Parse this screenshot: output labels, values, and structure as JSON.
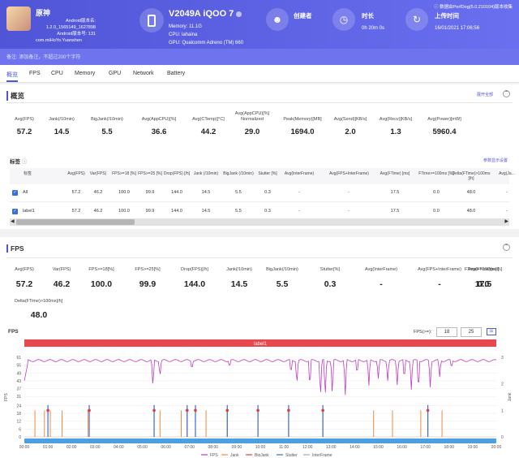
{
  "header": {
    "app_name": "原神",
    "app_version_label": "Android版本名:",
    "app_version": "1.2.0_1565149_1627898",
    "app_build_label": "Android版本号: 131",
    "package": "com.miHoYo.Yuanshen",
    "device_name": "V2049A iQOO 7",
    "memory": "Memory: 11.1G",
    "cpu": "CPU: lahaina",
    "gpu": "GPU: Qualcomm Adreno (TM) 660",
    "creator_label": "创建者",
    "duration_label": "时长",
    "duration_value": "0h 20m 0s",
    "upload_label": "上传时间",
    "upload_value": "16/01/2021 17:06:56",
    "source": "数据由PerfDog(5.0.210104)版本收集",
    "remark": "备注: 添加备注，不超过200个字符"
  },
  "tabs": [
    "概览",
    "FPS",
    "CPU",
    "Memory",
    "GPU",
    "Network",
    "Battery"
  ],
  "overview": {
    "title": "概览",
    "expand_label": "展开全部",
    "metrics": [
      {
        "label": "Avg(FPS)",
        "value": "57.2"
      },
      {
        "label": "Jank(/10min)",
        "value": "14.5"
      },
      {
        "label": "BigJank(/10min)",
        "value": "5.5"
      },
      {
        "label": "Avg(AppCPU)[%]",
        "value": "36.6"
      },
      {
        "label": "Avg(CTemp)[°C]",
        "value": "44.2"
      },
      {
        "label": "Avg(AppCPU)[%] Normalized",
        "value": "29.0"
      },
      {
        "label": "Peak(Memory)[MB]",
        "value": "1694.0"
      },
      {
        "label": "Avg(Send)[KB/s]",
        "value": "2.0"
      },
      {
        "label": "Avg(Recv)[KB/s]",
        "value": "1.3"
      },
      {
        "label": "Avg(Power)[mW]",
        "value": "5960.4"
      }
    ],
    "table_title": "标签",
    "table_link": "参数显示设置",
    "columns": [
      "标签",
      "Avg(FPS)",
      "Var(FPS)",
      "FPS>=18 [%]",
      "FPS>=25 [%]",
      "Drop(FPS) [/h]",
      "Jank (/10min)",
      "BigJank (/10min)",
      "Stutter [%]",
      "Avg(InterFrame)",
      "Avg(FPS+InterFrame)",
      "Avg(FTime) [ms]",
      "FTime>=100ms [%]",
      "Delta(FTime)>100ms [/h]",
      "Avg(Ja..."
    ],
    "rows": [
      [
        "All",
        "57.2",
        "46.2",
        "100.0",
        "99.9",
        "144.0",
        "14.5",
        "5.5",
        "0.3",
        "-",
        "-",
        "17.5",
        "0.0",
        "48.0",
        "-"
      ],
      [
        "label1",
        "57.2",
        "46.2",
        "100.0",
        "99.9",
        "144.0",
        "14.5",
        "5.5",
        "0.3",
        "-",
        "-",
        "17.5",
        "0.0",
        "48.0",
        "-"
      ]
    ]
  },
  "fps_section": {
    "title": "FPS",
    "metrics": [
      {
        "label": "Avg(FPS)",
        "value": "57.2"
      },
      {
        "label": "Var(FPS)",
        "value": "46.2"
      },
      {
        "label": "FPS>=18[%]",
        "value": "100.0"
      },
      {
        "label": "FPS>=25[%]",
        "value": "99.9"
      },
      {
        "label": "Drop(FPS)[/h]",
        "value": "144.0"
      },
      {
        "label": "Jank(/10min)",
        "value": "14.5"
      },
      {
        "label": "BigJank(/10min)",
        "value": "5.5"
      },
      {
        "label": "Stutter[%]",
        "value": "0.3"
      },
      {
        "label": "Avg(InterFrame)",
        "value": "-"
      },
      {
        "label": "Avg(FPS+InterFrame)",
        "value": "-"
      },
      {
        "label": "Avg(FTime)[ms]",
        "value": "17.5"
      },
      {
        "label": "FTime>=100ms[%]",
        "value": "0.0"
      },
      {
        "label": "Delta(FTime)>100ms[/h]",
        "value": "48.0"
      }
    ],
    "fps_filter_label": "FPS(>=):",
    "fps_filter_a": "18",
    "fps_filter_b": "25"
  },
  "chart_data": {
    "type": "line",
    "title": "FPS",
    "label_band": "label1",
    "ylabel": "FPS",
    "y2label": "Jank",
    "y_ticks": [
      "61",
      "55",
      "49",
      "43",
      "37",
      "31",
      "24",
      "18",
      "12",
      "6",
      "0"
    ],
    "y2_ticks": [
      "3",
      "2",
      "1",
      "0"
    ],
    "x_ticks": [
      "00:00",
      "01:00",
      "02:00",
      "03:00",
      "04:00",
      "05:00",
      "06:00",
      "07:00",
      "08:00",
      "09:00",
      "10:00",
      "11:00",
      "12:00",
      "13:00",
      "14:00",
      "15:00",
      "16:00",
      "17:00",
      "18:00",
      "19:00",
      "20:00"
    ],
    "ylim": [
      0,
      61
    ],
    "y2lim": [
      0,
      3
    ],
    "fps_dips": [
      {
        "t": 5.45,
        "v": 36
      },
      {
        "t": 5.75,
        "v": 46
      },
      {
        "t": 7.1,
        "v": 52
      },
      {
        "t": 8.7,
        "v": 53
      },
      {
        "t": 11.3,
        "v": 47
      },
      {
        "t": 11.55,
        "v": 40
      },
      {
        "t": 12.1,
        "v": 36
      },
      {
        "t": 12.55,
        "v": 29
      },
      {
        "t": 12.75,
        "v": 28
      },
      {
        "t": 13.05,
        "v": 30
      },
      {
        "t": 13.6,
        "v": 31
      },
      {
        "t": 14.1,
        "v": 46
      },
      {
        "t": 14.6,
        "v": 38
      },
      {
        "t": 15.0,
        "v": 44
      },
      {
        "t": 15.4,
        "v": 43
      },
      {
        "t": 15.8,
        "v": 40
      },
      {
        "t": 16.1,
        "v": 42
      },
      {
        "t": 16.4,
        "v": 36
      },
      {
        "t": 16.7,
        "v": 34
      },
      {
        "t": 17.2,
        "v": 38
      },
      {
        "t": 17.6,
        "v": 45
      },
      {
        "t": 18.1,
        "v": 52
      }
    ],
    "jank_times": [
      0.45,
      0.85,
      1.1,
      1.6,
      2.7,
      5.5,
      5.75,
      6.65,
      6.9,
      7.25,
      7.7,
      8.6,
      9.9,
      11.2,
      12.65,
      14.8,
      15.6,
      16.8,
      17.1,
      17.7
    ],
    "bigjank_times": [
      1.0,
      2.75,
      5.5,
      6.9,
      7.25,
      8.6,
      9.9,
      11.2,
      12.65,
      17.1
    ],
    "legend": [
      "FPS",
      "Jank",
      "BigJank",
      "Stutter",
      "InterFrame"
    ],
    "colors": {
      "fps": "#c03cc0",
      "jank": "#f08a3c",
      "bigjank": "#e43c3c",
      "stutter": "#3c6cd8",
      "interframe": "#9aa8c0"
    }
  }
}
